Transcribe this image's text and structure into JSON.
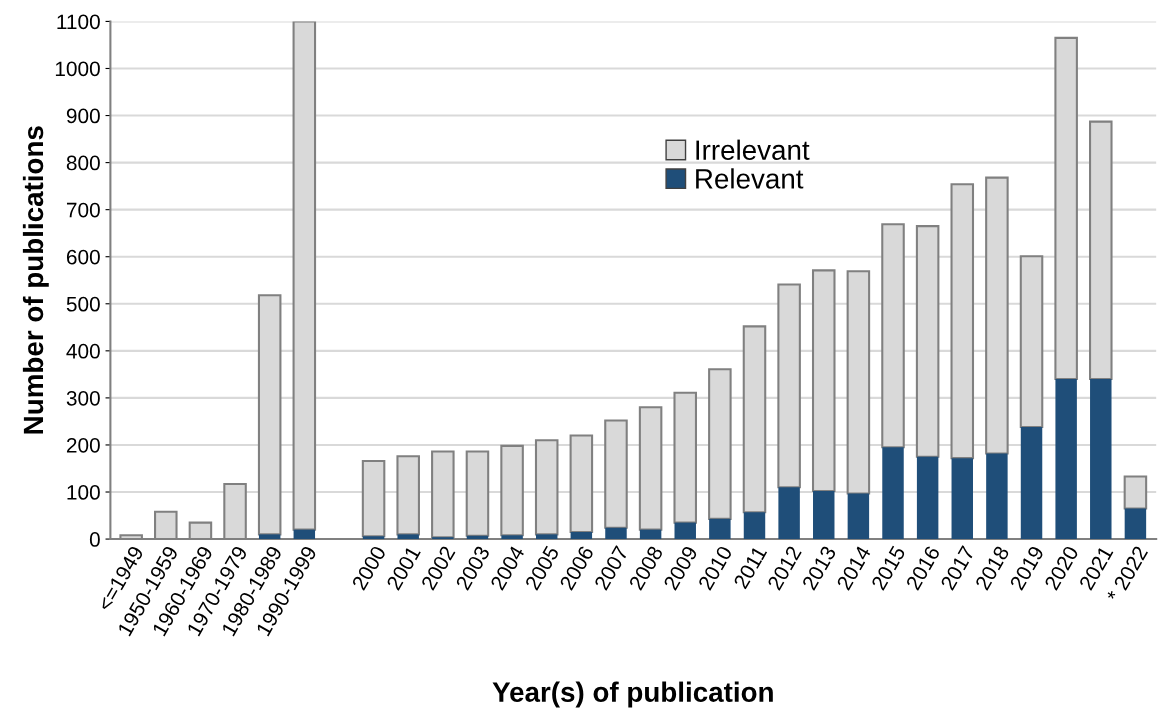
{
  "chart_data": {
    "type": "bar",
    "stacked": true,
    "xlabel": "Year(s) of publication",
    "ylabel": "Number of publications",
    "categories": [
      "<=1949",
      "1950-1959",
      "1960-1969",
      "1970-1979",
      "1980-1989",
      "1990-1999",
      null,
      "2000",
      "2001",
      "2002",
      "2003",
      "2004",
      "2005",
      "2006",
      "2007",
      "2008",
      "2009",
      "2010",
      "2011",
      "2012",
      "2013",
      "2014",
      "2015",
      "2016",
      "2017",
      "2018",
      "2019",
      "2020",
      "2021",
      "* 2022"
    ],
    "series": [
      {
        "name": "Relevant",
        "color": "#1f4e79",
        "values": [
          0,
          0,
          0,
          0,
          10,
          20,
          null,
          6,
          10,
          4,
          7,
          8,
          10,
          15,
          24,
          20,
          35,
          43,
          57,
          110,
          102,
          97,
          195,
          175,
          172,
          182,
          238,
          340,
          340,
          65
        ]
      },
      {
        "name": "Irrelevant",
        "color": "#d9d9d9",
        "values": [
          8,
          58,
          35,
          117,
          508,
          1080,
          null,
          160,
          166,
          182,
          179,
          190,
          200,
          205,
          228,
          260,
          276,
          318,
          395,
          431,
          469,
          472,
          474,
          490,
          582,
          586,
          363,
          725,
          547,
          68
        ]
      }
    ],
    "ylim": [
      0,
      1100
    ],
    "yticks": [
      0,
      100,
      200,
      300,
      400,
      500,
      600,
      700,
      800,
      900,
      1000,
      1100
    ],
    "grid": "y",
    "legend": "top"
  }
}
